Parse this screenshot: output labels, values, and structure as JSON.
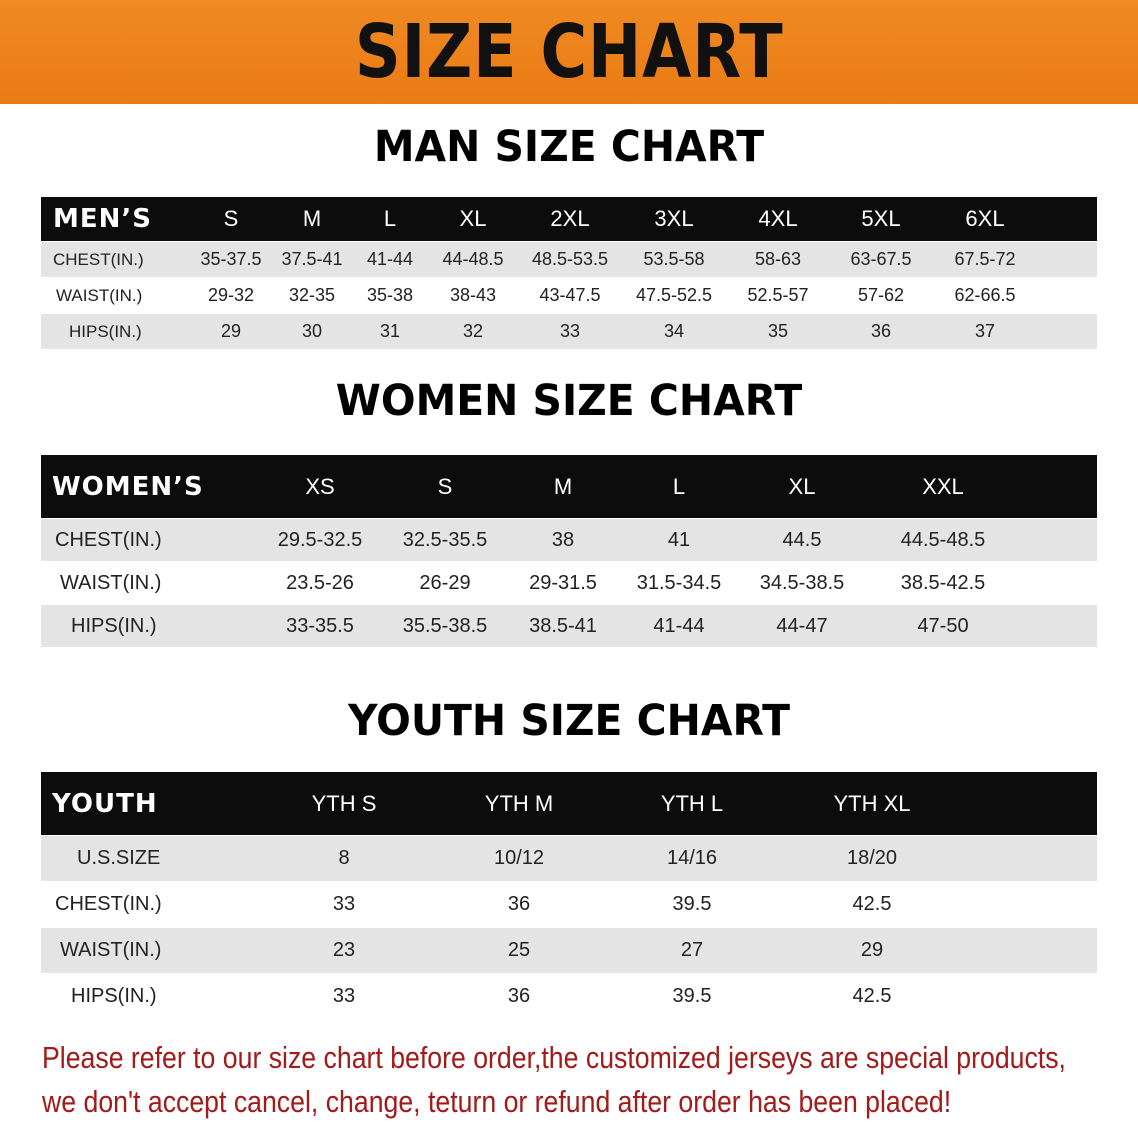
{
  "banner_title": "SIZE CHART",
  "men": {
    "title": "MAN SIZE CHART",
    "header": "MEN’S",
    "sizes": [
      "S",
      "M",
      "L",
      "XL",
      "2XL",
      "3XL",
      "4XL",
      "5XL",
      "6XL"
    ],
    "rows": [
      {
        "label": "CHEST(IN.)",
        "values": [
          "35-37.5",
          "37.5-41",
          "41-44",
          "44-48.5",
          "48.5-53.5",
          "53.5-58",
          "58-63",
          "63-67.5",
          "67.5-72"
        ]
      },
      {
        "label": "WAIST(IN.)",
        "values": [
          "29-32",
          "32-35",
          "35-38",
          "38-43",
          "43-47.5",
          "47.5-52.5",
          "52.5-57",
          "57-62",
          "62-66.5"
        ]
      },
      {
        "label": "HIPS(IN.)",
        "values": [
          "29",
          "30",
          "31",
          "32",
          "33",
          "34",
          "35",
          "36",
          "37"
        ]
      }
    ]
  },
  "women": {
    "title": "WOMEN SIZE CHART",
    "header": "WOMEN’S",
    "sizes": [
      "XS",
      "S",
      "M",
      "L",
      "XL",
      "XXL"
    ],
    "rows": [
      {
        "label": "CHEST(IN.)",
        "values": [
          "29.5-32.5",
          "32.5-35.5",
          "38",
          "41",
          "44.5",
          "44.5-48.5"
        ]
      },
      {
        "label": "WAIST(IN.)",
        "values": [
          "23.5-26",
          "26-29",
          "29-31.5",
          "31.5-34.5",
          "34.5-38.5",
          "38.5-42.5"
        ]
      },
      {
        "label": "HIPS(IN.)",
        "values": [
          "33-35.5",
          "35.5-38.5",
          "38.5-41",
          "41-44",
          "44-47",
          "47-50"
        ]
      }
    ]
  },
  "youth": {
    "title": "YOUTH SIZE CHART",
    "header": "YOUTH",
    "sizes": [
      "YTH S",
      "YTH M",
      "YTH L",
      "YTH XL"
    ],
    "rows": [
      {
        "label": "U.S.SIZE",
        "values": [
          "8",
          "10/12",
          "14/16",
          "18/20"
        ]
      },
      {
        "label": "CHEST(IN.)",
        "values": [
          "33",
          "36",
          "39.5",
          "42.5"
        ]
      },
      {
        "label": "WAIST(IN.)",
        "values": [
          "23",
          "25",
          "27",
          "29"
        ]
      },
      {
        "label": "HIPS(IN.)",
        "values": [
          "33",
          "36",
          "39.5",
          "42.5"
        ]
      }
    ]
  },
  "notice": [
    "Please refer to our size chart before order,the customized jerseys are special products,",
    "we don't accept cancel, change, teturn or refund after order has been placed!"
  ],
  "colors": {
    "banner": "#ee8019",
    "notice": "#a31a1a",
    "header_row": "#0c0c0c",
    "stripe": "#e4e4e4"
  }
}
